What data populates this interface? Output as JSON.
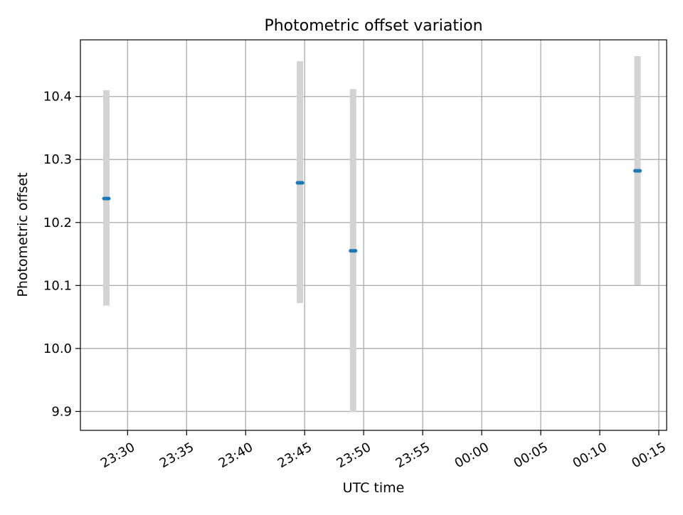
{
  "chart_data": {
    "type": "scatter",
    "title": "Photometric offset variation",
    "xlabel": "UTC time",
    "ylabel": "Photometric offset",
    "x_axis_type": "time",
    "xlim": [
      "23:26:00",
      "00:15:40"
    ],
    "ylim": [
      9.87,
      10.49
    ],
    "grid": true,
    "xticks": [
      "23:30",
      "23:35",
      "23:40",
      "23:45",
      "23:50",
      "23:55",
      "00:00",
      "00:05",
      "00:10",
      "00:15"
    ],
    "yticks": [
      "9.9",
      "10.0",
      "10.1",
      "10.2",
      "10.3",
      "10.4"
    ],
    "points": [
      {
        "x": "23:28:12",
        "y": 10.238,
        "yerr_low": 10.068,
        "yerr_high": 10.41
      },
      {
        "x": "23:44:36",
        "y": 10.263,
        "yerr_low": 10.072,
        "yerr_high": 10.456
      },
      {
        "x": "23:49:06",
        "y": 10.155,
        "yerr_low": 9.899,
        "yerr_high": 10.412
      },
      {
        "x": "00:13:12",
        "y": 10.282,
        "yerr_low": 10.101,
        "yerr_high": 10.464
      }
    ],
    "marker_color": "#1f77b4",
    "errorbar_color": "#d3d3d3",
    "grid_color": "#b0b0b0"
  }
}
